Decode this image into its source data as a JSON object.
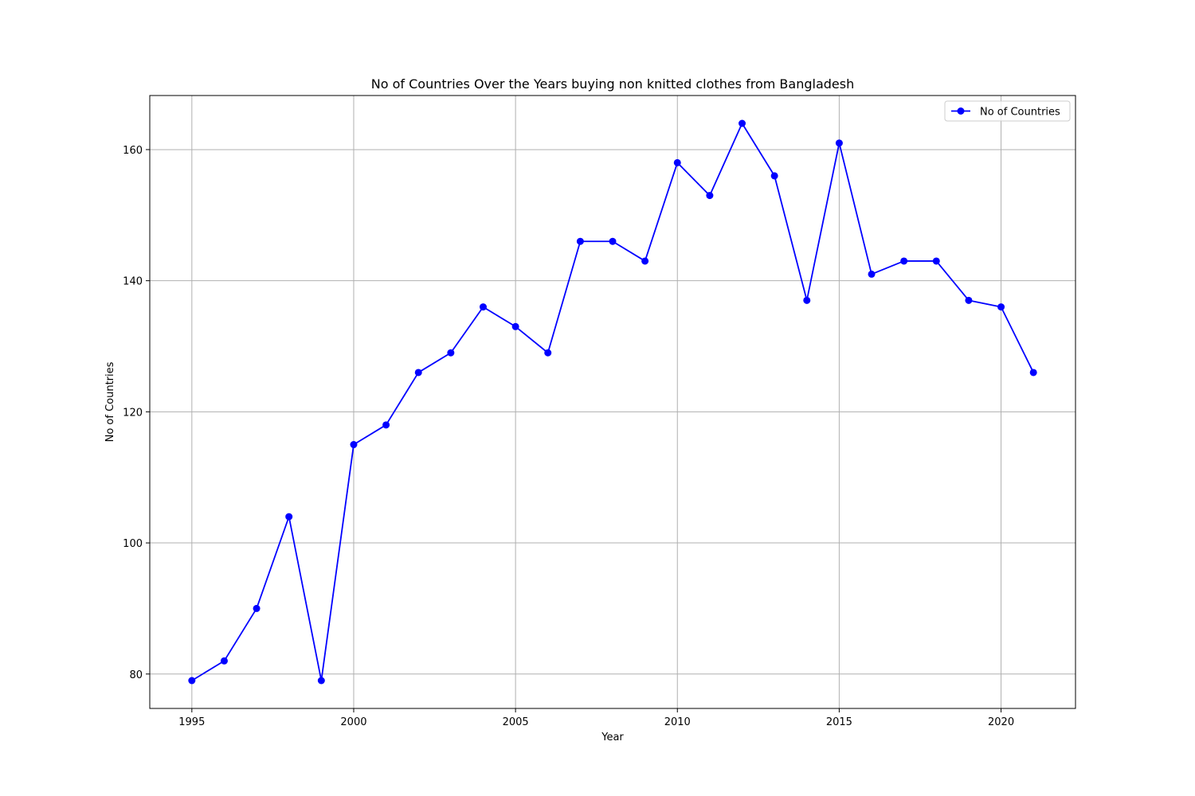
{
  "chart_data": {
    "type": "line",
    "title": "No of Countries Over the Years buying non knitted clothes from Bangladesh",
    "xlabel": "Year",
    "ylabel": "No of Countries",
    "x": [
      1995,
      1996,
      1997,
      1998,
      1999,
      2000,
      2001,
      2002,
      2003,
      2004,
      2005,
      2006,
      2007,
      2008,
      2009,
      2010,
      2011,
      2012,
      2013,
      2014,
      2015,
      2016,
      2017,
      2018,
      2019,
      2020,
      2021
    ],
    "series": [
      {
        "name": "No of Countries",
        "color": "#0000ff",
        "marker": "circle",
        "values": [
          79,
          82,
          90,
          104,
          79,
          115,
          118,
          126,
          129,
          136,
          133,
          129,
          146,
          146,
          143,
          158,
          153,
          164,
          156,
          137,
          161,
          141,
          143,
          143,
          137,
          136,
          126
        ]
      }
    ],
    "xlim": [
      1993.7,
      2022.3
    ],
    "ylim": [
      74.75,
      168.25
    ],
    "xticks": [
      1995,
      2000,
      2005,
      2010,
      2015,
      2020
    ],
    "yticks": [
      80,
      100,
      120,
      140,
      160
    ],
    "grid": true,
    "legend": "top-right"
  }
}
